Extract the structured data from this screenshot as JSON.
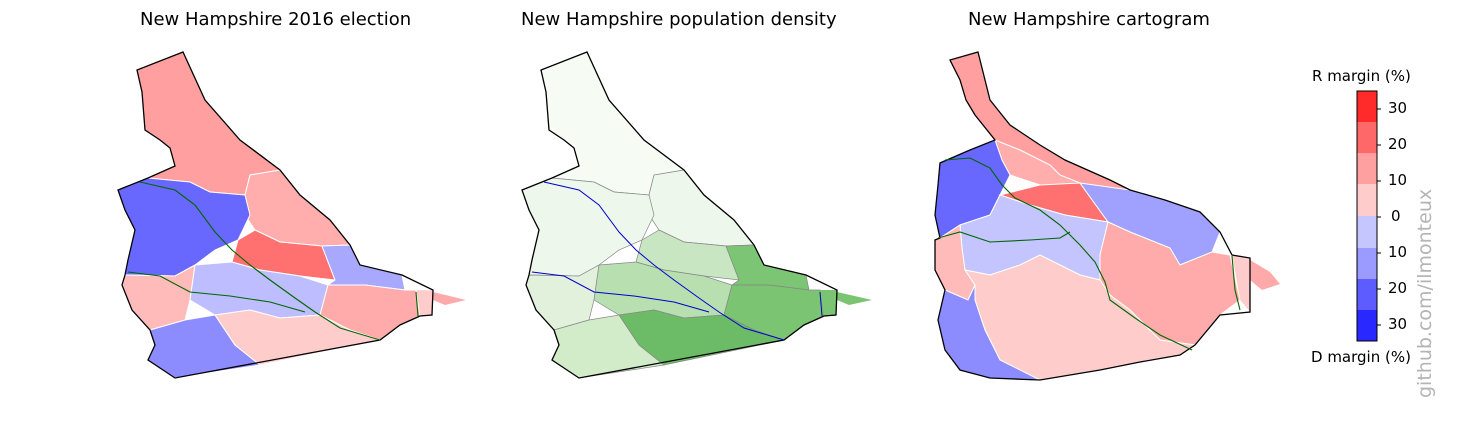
{
  "titles": {
    "election": "New Hampshire 2016 election",
    "density": "New Hampshire population density",
    "cartogram": "New Hampshire cartogram"
  },
  "legend": {
    "top_label": "R margin (%)",
    "bottom_label": "D margin (%)",
    "ticks": [
      "30",
      "20",
      "10",
      "0",
      "10",
      "20",
      "30"
    ],
    "colors_top_to_bottom": [
      "#ff2a2a",
      "#ff6868",
      "#ffa0a0",
      "#ffcccc",
      "#c6c6ff",
      "#9a9aff",
      "#5c5cff",
      "#2828ff"
    ]
  },
  "watermark": "github.com/ilmonteux",
  "colors": {
    "river": "#0000cc",
    "road": "#006600",
    "border": "#000000"
  }
}
